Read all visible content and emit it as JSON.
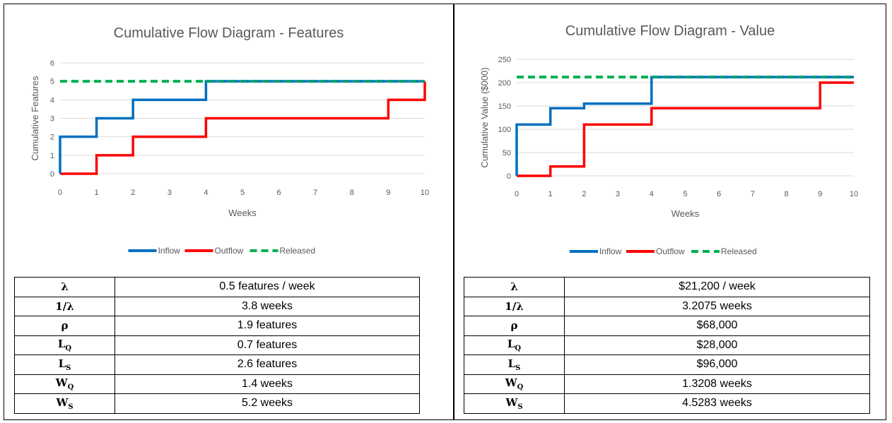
{
  "chart_data": [
    {
      "type": "line",
      "title": "Cumulative Flow Diagram - Features",
      "xlabel": "Weeks",
      "ylabel": "Cumulative Features",
      "xlim": [
        0,
        10
      ],
      "ylim": [
        0,
        6
      ],
      "x_ticks": [
        "0",
        "1",
        "2",
        "3",
        "4",
        "5",
        "6",
        "7",
        "8",
        "9",
        "10"
      ],
      "y_ticks": [
        "0",
        "1",
        "2",
        "3",
        "4",
        "5",
        "6"
      ],
      "legend_position": "bottom",
      "series": [
        {
          "name": "Inflow",
          "color": "#0070C0",
          "style": "step",
          "x": [
            0,
            1,
            2,
            4,
            10
          ],
          "y": [
            2,
            3,
            4,
            5,
            5
          ]
        },
        {
          "name": "Outflow",
          "color": "#FF0000",
          "style": "step",
          "x": [
            0,
            1,
            2,
            4,
            9,
            10
          ],
          "y": [
            0,
            1,
            2,
            3,
            4,
            5
          ]
        },
        {
          "name": "Released",
          "color": "#00B050",
          "style": "dashed",
          "x": [
            0,
            10
          ],
          "y": [
            5,
            5
          ]
        }
      ]
    },
    {
      "type": "line",
      "title": "Cumulative Flow Diagram - Value",
      "xlabel": "Weeks",
      "ylabel": "Cumulative Value ($000)",
      "xlim": [
        0,
        10
      ],
      "ylim": [
        0,
        250
      ],
      "x_ticks": [
        "0",
        "1",
        "2",
        "3",
        "4",
        "5",
        "6",
        "7",
        "8",
        "9",
        "10"
      ],
      "y_ticks": [
        "0",
        "50",
        "100",
        "150",
        "200",
        "250"
      ],
      "legend_position": "bottom",
      "series": [
        {
          "name": "Inflow",
          "color": "#0070C0",
          "style": "step",
          "x": [
            0,
            1,
            2,
            4,
            10
          ],
          "y": [
            110,
            145,
            155,
            212,
            212
          ]
        },
        {
          "name": "Outflow",
          "color": "#FF0000",
          "style": "step",
          "x": [
            0,
            1,
            2,
            4,
            9,
            10
          ],
          "y": [
            0,
            20,
            110,
            145,
            200,
            200
          ]
        },
        {
          "name": "Released",
          "color": "#00B050",
          "style": "dashed",
          "x": [
            0,
            10
          ],
          "y": [
            212,
            212
          ]
        }
      ]
    }
  ],
  "tables": {
    "left": [
      {
        "sym": "λ",
        "sub": "",
        "val": "0.5 features / week"
      },
      {
        "sym": "1/λ",
        "sub": "",
        "val": "3.8 weeks"
      },
      {
        "sym": "ρ",
        "sub": "",
        "val": "1.9 features"
      },
      {
        "sym": "L",
        "sub": "Q",
        "val": "0.7 features"
      },
      {
        "sym": "L",
        "sub": "S",
        "val": "2.6 features"
      },
      {
        "sym": "W",
        "sub": "Q",
        "val": "1.4 weeks"
      },
      {
        "sym": "W",
        "sub": "S",
        "val": "5.2 weeks"
      }
    ],
    "right": [
      {
        "sym": "λ",
        "sub": "",
        "val": "$21,200 / week"
      },
      {
        "sym": "1/λ",
        "sub": "",
        "val": "3.2075 weeks"
      },
      {
        "sym": "ρ",
        "sub": "",
        "val": "$68,000"
      },
      {
        "sym": "L",
        "sub": "Q",
        "val": "$28,000"
      },
      {
        "sym": "L",
        "sub": "S",
        "val": "$96,000"
      },
      {
        "sym": "W",
        "sub": "Q",
        "val": "1.3208 weeks"
      },
      {
        "sym": "W",
        "sub": "S",
        "val": "4.5283 weeks"
      }
    ]
  }
}
